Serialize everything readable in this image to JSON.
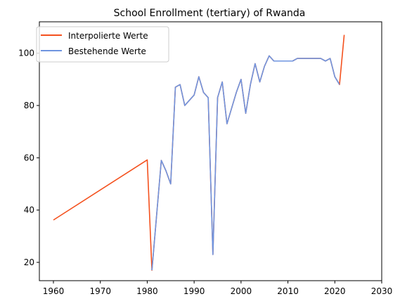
{
  "chart_data": {
    "type": "line",
    "title": "School Enrollment (tertiary) of Rwanda",
    "xlabel": "",
    "ylabel": "",
    "xlim": [
      1957,
      2030
    ],
    "ylim": [
      13,
      112
    ],
    "xticks": [
      1960,
      1970,
      1980,
      1990,
      2000,
      2010,
      2020,
      2030
    ],
    "yticks": [
      20,
      40,
      60,
      80,
      100
    ],
    "grid": false,
    "legend_position": "top-left",
    "series": [
      {
        "name": "Interpolierte Werte",
        "color": "#f4511e",
        "points": [
          [
            1960,
            36.2
          ],
          [
            1980,
            59.2
          ],
          [
            1981,
            17
          ],
          [
            1982,
            38
          ],
          [
            1983,
            59
          ],
          [
            1984,
            55
          ],
          [
            1985,
            50
          ],
          [
            1986,
            87
          ],
          [
            1987,
            88
          ],
          [
            1988,
            80
          ],
          [
            1990,
            84
          ],
          [
            1991,
            91
          ],
          [
            1992,
            85
          ],
          [
            1993,
            83
          ],
          [
            1994,
            23
          ],
          [
            1995,
            83
          ],
          [
            1996,
            89
          ],
          [
            1997,
            73
          ],
          [
            1998,
            79
          ],
          [
            1999,
            85
          ],
          [
            2000,
            90
          ],
          [
            2001,
            77
          ],
          [
            2002,
            88
          ],
          [
            2003,
            96
          ],
          [
            2004,
            89
          ],
          [
            2005,
            95
          ],
          [
            2006,
            99
          ],
          [
            2007,
            97
          ],
          [
            2008,
            97
          ],
          [
            2009,
            97
          ],
          [
            2010,
            97
          ],
          [
            2011,
            97
          ],
          [
            2012,
            98
          ],
          [
            2013,
            98
          ],
          [
            2014,
            98
          ],
          [
            2015,
            98
          ],
          [
            2016,
            98
          ],
          [
            2017,
            98
          ],
          [
            2018,
            97
          ],
          [
            2019,
            98
          ],
          [
            2020,
            91
          ],
          [
            2021,
            88
          ],
          [
            2022,
            107
          ]
        ]
      },
      {
        "name": "Bestehende Werte",
        "color": "#6f95e0",
        "points": [
          [
            1981,
            17
          ],
          [
            1982,
            38
          ],
          [
            1983,
            59
          ],
          [
            1984,
            55
          ],
          [
            1985,
            50
          ],
          [
            1986,
            87
          ],
          [
            1987,
            88
          ],
          [
            1988,
            80
          ],
          [
            1990,
            84
          ],
          [
            1991,
            91
          ],
          [
            1992,
            85
          ],
          [
            1993,
            83
          ],
          [
            1994,
            23
          ],
          [
            1995,
            83
          ],
          [
            1996,
            89
          ],
          [
            1997,
            73
          ],
          [
            1998,
            79
          ],
          [
            1999,
            85
          ],
          [
            2000,
            90
          ],
          [
            2001,
            77
          ],
          [
            2002,
            88
          ],
          [
            2003,
            96
          ],
          [
            2004,
            89
          ],
          [
            2005,
            95
          ],
          [
            2006,
            99
          ],
          [
            2007,
            97
          ],
          [
            2008,
            97
          ],
          [
            2009,
            97
          ],
          [
            2010,
            97
          ],
          [
            2011,
            97
          ],
          [
            2012,
            98
          ],
          [
            2013,
            98
          ],
          [
            2014,
            98
          ],
          [
            2015,
            98
          ],
          [
            2016,
            98
          ],
          [
            2017,
            98
          ],
          [
            2018,
            97
          ],
          [
            2019,
            98
          ],
          [
            2020,
            91
          ],
          [
            2021,
            88
          ]
        ]
      }
    ]
  }
}
